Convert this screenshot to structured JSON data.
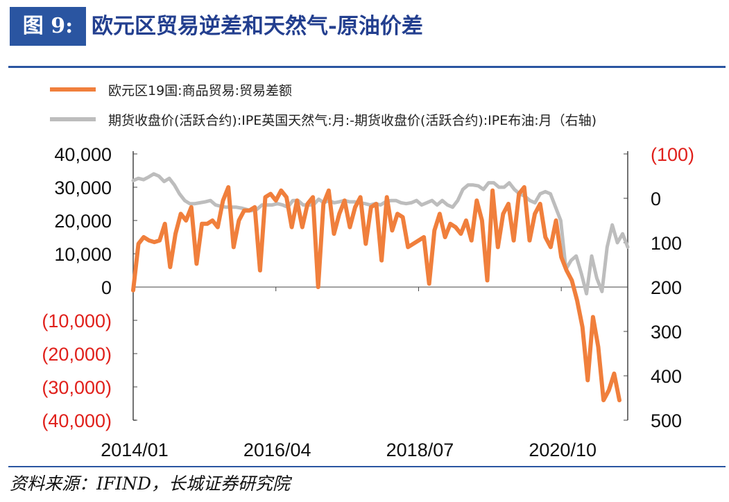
{
  "figure": {
    "label": "图 9:",
    "title": "欧元区贸易逆差和天然气-原油价差",
    "source": "资料来源：IFIND，长城证券研究院"
  },
  "colors": {
    "banner": "#2a55a1",
    "title": "#233f8f",
    "series_trade": "#f07f3c",
    "series_spread": "#bdbdbd",
    "negative_label": "#e0201b",
    "axis": "#444444"
  },
  "chart_data": {
    "type": "line",
    "x_tick_labels": [
      "2014/01",
      "2016/04",
      "2018/07",
      "2020/10"
    ],
    "x_range": [
      "2014-01",
      "2022-08"
    ],
    "legend_placement": "top-left",
    "grid": false,
    "left_axis": {
      "ylim": [
        -40000,
        40000
      ],
      "tick_labels": [
        "40,000",
        "30,000",
        "20,000",
        "10,000",
        "0",
        "(10,000)",
        "(20,000)",
        "(30,000)",
        "(40,000)"
      ]
    },
    "right_axis": {
      "inverted": true,
      "ylim": [
        -100,
        500
      ],
      "tick_labels": [
        "(100)",
        "0",
        "100",
        "200",
        "300",
        "400",
        "500"
      ]
    },
    "series": [
      {
        "name": "欧元区19国:商品贸易:贸易差额",
        "axis": "left",
        "color": "#f07f3c",
        "values": [
          -1000,
          13000,
          15000,
          14000,
          13500,
          14000,
          19000,
          6000,
          16000,
          22000,
          20000,
          24000,
          7000,
          19000,
          19000,
          20000,
          18000,
          26000,
          30000,
          12000,
          20000,
          23000,
          23000,
          24000,
          5000,
          27000,
          28000,
          26000,
          29000,
          27000,
          18000,
          26000,
          18000,
          25000,
          27000,
          0,
          25000,
          29000,
          16000,
          22000,
          26000,
          18000,
          24000,
          27000,
          13000,
          24000,
          25000,
          8000,
          27000,
          17000,
          22000,
          21000,
          12000,
          13000,
          14000,
          15000,
          1000,
          17000,
          22000,
          15000,
          19000,
          18000,
          16000,
          20000,
          14000,
          26000,
          20000,
          2000,
          29000,
          12000,
          22000,
          25000,
          14000,
          28000,
          30000,
          14000,
          22000,
          25000,
          15000,
          12000,
          20000,
          9000,
          5000,
          2000,
          -4000,
          -12000,
          -28000,
          -9000,
          -18000,
          -34000,
          -31000,
          -26000,
          -34000
        ]
      },
      {
        "name": "期货收盘价(活跃合约):IPE英国天然气:月:-期货收盘价(活跃合约):IPE布油:月（右轴)",
        "axis": "right",
        "color": "#bdbdbd",
        "values": [
          -40,
          -45,
          -42,
          -48,
          -55,
          -50,
          -38,
          -45,
          -30,
          -10,
          5,
          12,
          12,
          10,
          8,
          5,
          15,
          18,
          20,
          20,
          20,
          22,
          25,
          28,
          25,
          15,
          15,
          15,
          12,
          15,
          20,
          5,
          5,
          15,
          15,
          15,
          2,
          10,
          5,
          10,
          8,
          5,
          8,
          8,
          10,
          12,
          15,
          12,
          15,
          8,
          5,
          5,
          10,
          12,
          10,
          5,
          15,
          10,
          5,
          15,
          5,
          15,
          20,
          5,
          -20,
          -30,
          -30,
          -28,
          -20,
          -35,
          -35,
          -25,
          -25,
          -35,
          -20,
          -10,
          -5,
          5,
          10,
          -10,
          -15,
          -10,
          20,
          50,
          160,
          140,
          130,
          170,
          215,
          130,
          180,
          210,
          110,
          60,
          100,
          80,
          110
        ]
      }
    ]
  }
}
